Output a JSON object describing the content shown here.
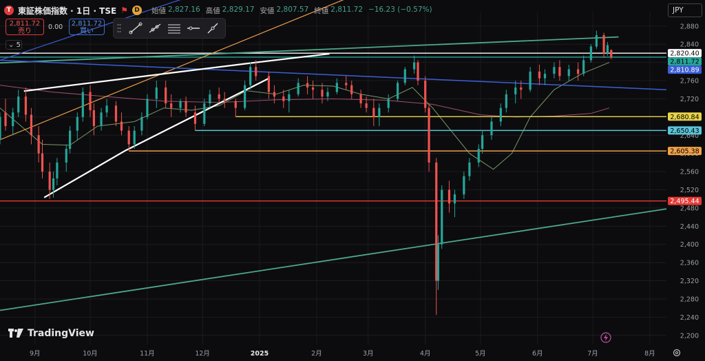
{
  "header": {
    "logo_letter": "T",
    "symbol": "東証株価指数 · 1日 · TSE",
    "flag": "⚑",
    "d_badge": "D",
    "open_label": "始値",
    "open": "2,827.16",
    "high_label": "高値",
    "high": "2,829.17",
    "low_label": "安値",
    "low": "2,807.57",
    "close_label": "終値",
    "close": "2,811.72",
    "change": "−16.23 (−0.57%)"
  },
  "trade": {
    "sell_price": "2,811.72",
    "sell_label": "売り",
    "spread": "0.00",
    "buy_price": "2,811.72",
    "buy_label": "買い"
  },
  "indicator_count": "5",
  "currency": "JPY",
  "brand": "TradingView",
  "colors": {
    "up": "#26a69a",
    "down": "#ef5350",
    "grid": "#1c1c20",
    "green_line": "#4fa88a",
    "orange_line": "#f0a04a",
    "blue_line": "#3d5ed8",
    "white_line": "#ffffff",
    "yellow_line": "#e8d44a",
    "cyan_line": "#5cc4d8",
    "orange_h": "#f0a04a",
    "red_h": "#e53935",
    "ma_short": "#7a9a6a",
    "ma_long": "#a05070"
  },
  "chart_data": {
    "type": "candlestick",
    "ylim": [
      2180,
      2910
    ],
    "y_ticks": [
      2880,
      2840,
      2800,
      2760,
      2720,
      2680,
      2640,
      2600,
      2560,
      2520,
      2480,
      2440,
      2400,
      2360,
      2320,
      2280,
      2240,
      2200
    ],
    "y_tick_labels": [
      "2,880",
      "2,840",
      "2,800",
      "2,760",
      "2,720",
      "2,680",
      "2,640",
      "2,600",
      "2,560",
      "2,520",
      "2,480",
      "2,440",
      "2,400",
      "2,360",
      "2,320",
      "2,280",
      "2,240",
      "2,200"
    ],
    "x_labels": [
      "9月",
      "10月",
      "11月",
      "12月",
      "2025",
      "2月",
      "3月",
      "4月",
      "5月",
      "6月",
      "7月",
      "8月"
    ],
    "x_label_dates": [
      "2024-09-01",
      "2024-10-01",
      "2024-11-01",
      "2024-12-01",
      "2025-01-01",
      "2025-02-01",
      "2025-03-01",
      "2025-04-01",
      "2025-05-01",
      "2025-06-01",
      "2025-07-01",
      "2025-08-01"
    ],
    "date_range": [
      "2024-08-13",
      "2025-08-10"
    ],
    "price_tags": [
      {
        "value": 2820.4,
        "label": "2,820.40",
        "bg": "#ffffff",
        "fg": "#000000"
      },
      {
        "value": 2811.72,
        "label": "2,811.72",
        "bg": "#26a69a",
        "fg": "#000000"
      },
      {
        "value": 2810.89,
        "label": "2,810.89",
        "bg": "#3d5ed8",
        "fg": "#ffffff"
      },
      {
        "value": 2680.84,
        "label": "2,680.84",
        "bg": "#e8d44a",
        "fg": "#000000"
      },
      {
        "value": 2650.43,
        "label": "2,650.43",
        "bg": "#5cc4d8",
        "fg": "#000000"
      },
      {
        "value": 2605.38,
        "label": "2,605.38",
        "bg": "#f0a04a",
        "fg": "#000000"
      },
      {
        "value": 2495.44,
        "label": "2,495.44",
        "bg": "#e53935",
        "fg": "#ffffff"
      }
    ],
    "horizontal_lines": [
      {
        "value": 2820.4,
        "from": "2024-08-13",
        "color": "#ffffff"
      },
      {
        "value": 2811.72,
        "from": "2024-08-13",
        "color": "#26a69a"
      },
      {
        "value": 2680.84,
        "from": "2024-12-19",
        "color": "#e8d44a"
      },
      {
        "value": 2650.43,
        "from": "2024-11-27",
        "color": "#5cc4d8"
      },
      {
        "value": 2605.38,
        "from": "2024-10-22",
        "color": "#f0a04a"
      },
      {
        "value": 2495.44,
        "from": "2024-08-13",
        "color": "#e53935"
      }
    ],
    "trend_lines": [
      {
        "from": [
          "2024-08-13",
          2799
        ],
        "to": [
          "2025-07-15",
          2856
        ],
        "color": "#4fa88a",
        "width": 1.8
      },
      {
        "from": [
          "2024-08-13",
          2255
        ],
        "to": [
          "2025-08-10",
          2478
        ],
        "color": "#4fa88a",
        "width": 1.8
      },
      {
        "from": [
          "2024-08-13",
          2630
        ],
        "to": [
          "2025-03-01",
          2960
        ],
        "color": "#f0a04a",
        "width": 1.2
      },
      {
        "from": [
          "2024-08-13",
          2805
        ],
        "to": [
          "2024-12-20",
          2980
        ],
        "color": "#3d5ed8",
        "width": 1.2
      },
      {
        "from": [
          "2024-08-13",
          2805
        ],
        "to": [
          "2025-08-10",
          2740
        ],
        "color": "#3d5ed8",
        "width": 1.5
      },
      {
        "from": [
          "2024-08-26",
          2737
        ],
        "to": [
          "2024-12-30",
          2800
        ],
        "color": "#ffffff",
        "width": 2.2
      },
      {
        "from": [
          "2024-12-30",
          2800
        ],
        "to": [
          "2025-02-08",
          2819
        ],
        "color": "#ffffff",
        "width": 2.2
      },
      {
        "from": [
          "2024-09-06",
          2503
        ],
        "to": [
          "2024-10-20",
          2606
        ],
        "color": "#ffffff",
        "width": 2.2
      },
      {
        "from": [
          "2024-10-20",
          2606
        ],
        "to": [
          "2025-01-06",
          2765
        ],
        "color": "#ffffff",
        "width": 2.2
      }
    ],
    "ma_short": [
      [
        "2024-08-13",
        2700
      ],
      [
        "2024-09-05",
        2620
      ],
      [
        "2024-09-20",
        2618
      ],
      [
        "2024-10-05",
        2660
      ],
      [
        "2024-10-25",
        2670
      ],
      [
        "2024-11-10",
        2700
      ],
      [
        "2024-11-25",
        2695
      ],
      [
        "2024-12-10",
        2705
      ],
      [
        "2024-12-25",
        2738
      ],
      [
        "2025-01-10",
        2730
      ],
      [
        "2025-01-25",
        2750
      ],
      [
        "2025-02-10",
        2748
      ],
      [
        "2025-02-25",
        2730
      ],
      [
        "2025-03-12",
        2720
      ],
      [
        "2025-03-25",
        2745
      ],
      [
        "2025-04-05",
        2700
      ],
      [
        "2025-04-15",
        2650
      ],
      [
        "2025-04-25",
        2600
      ],
      [
        "2025-05-08",
        2565
      ],
      [
        "2025-05-18",
        2600
      ],
      [
        "2025-05-28",
        2680
      ],
      [
        "2025-06-10",
        2740
      ],
      [
        "2025-06-25",
        2775
      ],
      [
        "2025-07-10",
        2800
      ]
    ],
    "ma_long": [
      [
        "2024-08-13",
        2750
      ],
      [
        "2024-09-10",
        2735
      ],
      [
        "2024-10-10",
        2725
      ],
      [
        "2024-11-10",
        2715
      ],
      [
        "2024-12-10",
        2712
      ],
      [
        "2025-01-10",
        2718
      ],
      [
        "2025-02-10",
        2720
      ],
      [
        "2025-03-10",
        2717
      ],
      [
        "2025-04-05",
        2708
      ],
      [
        "2025-05-01",
        2685
      ],
      [
        "2025-05-20",
        2680
      ],
      [
        "2025-06-10",
        2682
      ],
      [
        "2025-06-30",
        2688
      ],
      [
        "2025-07-10",
        2700
      ]
    ],
    "candles_note_source": "daily OHLC estimated from chart",
    "candles": [
      [
        "2024-08-13",
        2630,
        2690,
        2620,
        2680
      ],
      [
        "2024-08-16",
        2690,
        2720,
        2650,
        2660
      ],
      [
        "2024-08-20",
        2660,
        2700,
        2640,
        2690
      ],
      [
        "2024-08-23",
        2690,
        2740,
        2680,
        2725
      ],
      [
        "2024-08-27",
        2725,
        2745,
        2670,
        2685
      ],
      [
        "2024-08-30",
        2685,
        2700,
        2620,
        2640
      ],
      [
        "2024-09-03",
        2640,
        2660,
        2580,
        2600
      ],
      [
        "2024-09-05",
        2600,
        2630,
        2545,
        2560
      ],
      [
        "2024-09-09",
        2560,
        2580,
        2500,
        2520
      ],
      [
        "2024-09-11",
        2520,
        2560,
        2503,
        2545
      ],
      [
        "2024-09-13",
        2545,
        2590,
        2530,
        2580
      ],
      [
        "2024-09-18",
        2580,
        2620,
        2560,
        2610
      ],
      [
        "2024-09-20",
        2610,
        2660,
        2600,
        2650
      ],
      [
        "2024-09-24",
        2650,
        2690,
        2630,
        2680
      ],
      [
        "2024-09-27",
        2680,
        2745,
        2670,
        2735
      ],
      [
        "2024-10-01",
        2735,
        2750,
        2680,
        2695
      ],
      [
        "2024-10-03",
        2695,
        2710,
        2640,
        2660
      ],
      [
        "2024-10-07",
        2660,
        2700,
        2650,
        2690
      ],
      [
        "2024-10-10",
        2690,
        2720,
        2680,
        2705
      ],
      [
        "2024-10-15",
        2705,
        2715,
        2660,
        2670
      ],
      [
        "2024-10-18",
        2670,
        2690,
        2640,
        2650
      ],
      [
        "2024-10-22",
        2650,
        2660,
        2606,
        2620
      ],
      [
        "2024-10-25",
        2620,
        2660,
        2610,
        2650
      ],
      [
        "2024-10-29",
        2650,
        2690,
        2640,
        2680
      ],
      [
        "2024-11-01",
        2680,
        2730,
        2675,
        2720
      ],
      [
        "2024-11-06",
        2720,
        2760,
        2700,
        2745
      ],
      [
        "2024-11-11",
        2745,
        2760,
        2700,
        2710
      ],
      [
        "2024-11-14",
        2710,
        2730,
        2680,
        2700
      ],
      [
        "2024-11-19",
        2700,
        2720,
        2690,
        2715
      ],
      [
        "2024-11-22",
        2715,
        2725,
        2680,
        2690
      ],
      [
        "2024-11-27",
        2690,
        2705,
        2650,
        2665
      ],
      [
        "2024-12-02",
        2665,
        2720,
        2660,
        2710
      ],
      [
        "2024-12-05",
        2710,
        2740,
        2700,
        2730
      ],
      [
        "2024-12-10",
        2730,
        2745,
        2710,
        2720
      ],
      [
        "2024-12-13",
        2720,
        2735,
        2700,
        2715
      ],
      [
        "2024-12-19",
        2715,
        2720,
        2680,
        2700
      ],
      [
        "2024-12-24",
        2700,
        2760,
        2695,
        2750
      ],
      [
        "2024-12-27",
        2750,
        2800,
        2740,
        2790
      ],
      [
        "2024-12-30",
        2790,
        2805,
        2760,
        2770
      ],
      [
        "2025-01-06",
        2770,
        2780,
        2720,
        2735
      ],
      [
        "2025-01-09",
        2735,
        2750,
        2710,
        2725
      ],
      [
        "2025-01-14",
        2725,
        2740,
        2700,
        2715
      ],
      [
        "2025-01-17",
        2715,
        2740,
        2690,
        2730
      ],
      [
        "2025-01-22",
        2730,
        2765,
        2725,
        2755
      ],
      [
        "2025-01-27",
        2755,
        2770,
        2730,
        2745
      ],
      [
        "2025-01-30",
        2745,
        2760,
        2720,
        2740
      ],
      [
        "2025-02-04",
        2740,
        2755,
        2710,
        2725
      ],
      [
        "2025-02-07",
        2725,
        2745,
        2715,
        2735
      ],
      [
        "2025-02-12",
        2735,
        2765,
        2730,
        2755
      ],
      [
        "2025-02-17",
        2755,
        2770,
        2740,
        2750
      ],
      [
        "2025-02-20",
        2750,
        2760,
        2720,
        2730
      ],
      [
        "2025-02-25",
        2730,
        2740,
        2700,
        2710
      ],
      [
        "2025-02-28",
        2710,
        2725,
        2690,
        2700
      ],
      [
        "2025-03-04",
        2700,
        2720,
        2660,
        2680
      ],
      [
        "2025-03-07",
        2680,
        2710,
        2660,
        2700
      ],
      [
        "2025-03-12",
        2700,
        2730,
        2690,
        2720
      ],
      [
        "2025-03-17",
        2720,
        2760,
        2715,
        2755
      ],
      [
        "2025-03-21",
        2755,
        2790,
        2750,
        2785
      ],
      [
        "2025-03-26",
        2785,
        2815,
        2775,
        2800
      ],
      [
        "2025-03-28",
        2800,
        2805,
        2750,
        2760
      ],
      [
        "2025-04-01",
        2760,
        2770,
        2690,
        2700
      ],
      [
        "2025-04-03",
        2700,
        2710,
        2560,
        2580
      ],
      [
        "2025-04-07",
        2580,
        2590,
        2245,
        2320
      ],
      [
        "2025-04-08",
        2320,
        2420,
        2300,
        2400
      ],
      [
        "2025-04-10",
        2400,
        2530,
        2390,
        2520
      ],
      [
        "2025-04-14",
        2520,
        2540,
        2470,
        2490
      ],
      [
        "2025-04-17",
        2490,
        2520,
        2460,
        2510
      ],
      [
        "2025-04-22",
        2510,
        2560,
        2500,
        2550
      ],
      [
        "2025-04-25",
        2550,
        2590,
        2540,
        2580
      ],
      [
        "2025-04-30",
        2580,
        2620,
        2570,
        2610
      ],
      [
        "2025-05-02",
        2610,
        2650,
        2600,
        2640
      ],
      [
        "2025-05-07",
        2640,
        2680,
        2630,
        2670
      ],
      [
        "2025-05-12",
        2670,
        2710,
        2660,
        2700
      ],
      [
        "2025-05-15",
        2700,
        2740,
        2690,
        2730
      ],
      [
        "2025-05-20",
        2730,
        2760,
        2710,
        2745
      ],
      [
        "2025-05-23",
        2745,
        2760,
        2720,
        2740
      ],
      [
        "2025-05-28",
        2740,
        2790,
        2735,
        2780
      ],
      [
        "2025-06-02",
        2780,
        2795,
        2750,
        2765
      ],
      [
        "2025-06-05",
        2765,
        2785,
        2750,
        2775
      ],
      [
        "2025-06-10",
        2775,
        2800,
        2765,
        2790
      ],
      [
        "2025-06-13",
        2790,
        2805,
        2760,
        2770
      ],
      [
        "2025-06-18",
        2770,
        2795,
        2760,
        2785
      ],
      [
        "2025-06-23",
        2785,
        2800,
        2760,
        2775
      ],
      [
        "2025-06-26",
        2775,
        2815,
        2770,
        2805
      ],
      [
        "2025-06-30",
        2805,
        2840,
        2800,
        2835
      ],
      [
        "2025-07-03",
        2835,
        2870,
        2830,
        2860
      ],
      [
        "2025-07-07",
        2860,
        2865,
        2810,
        2820
      ],
      [
        "2025-07-09",
        2820,
        2845,
        2815,
        2838
      ],
      [
        "2025-07-11",
        2827,
        2829,
        2807,
        2812
      ]
    ]
  }
}
